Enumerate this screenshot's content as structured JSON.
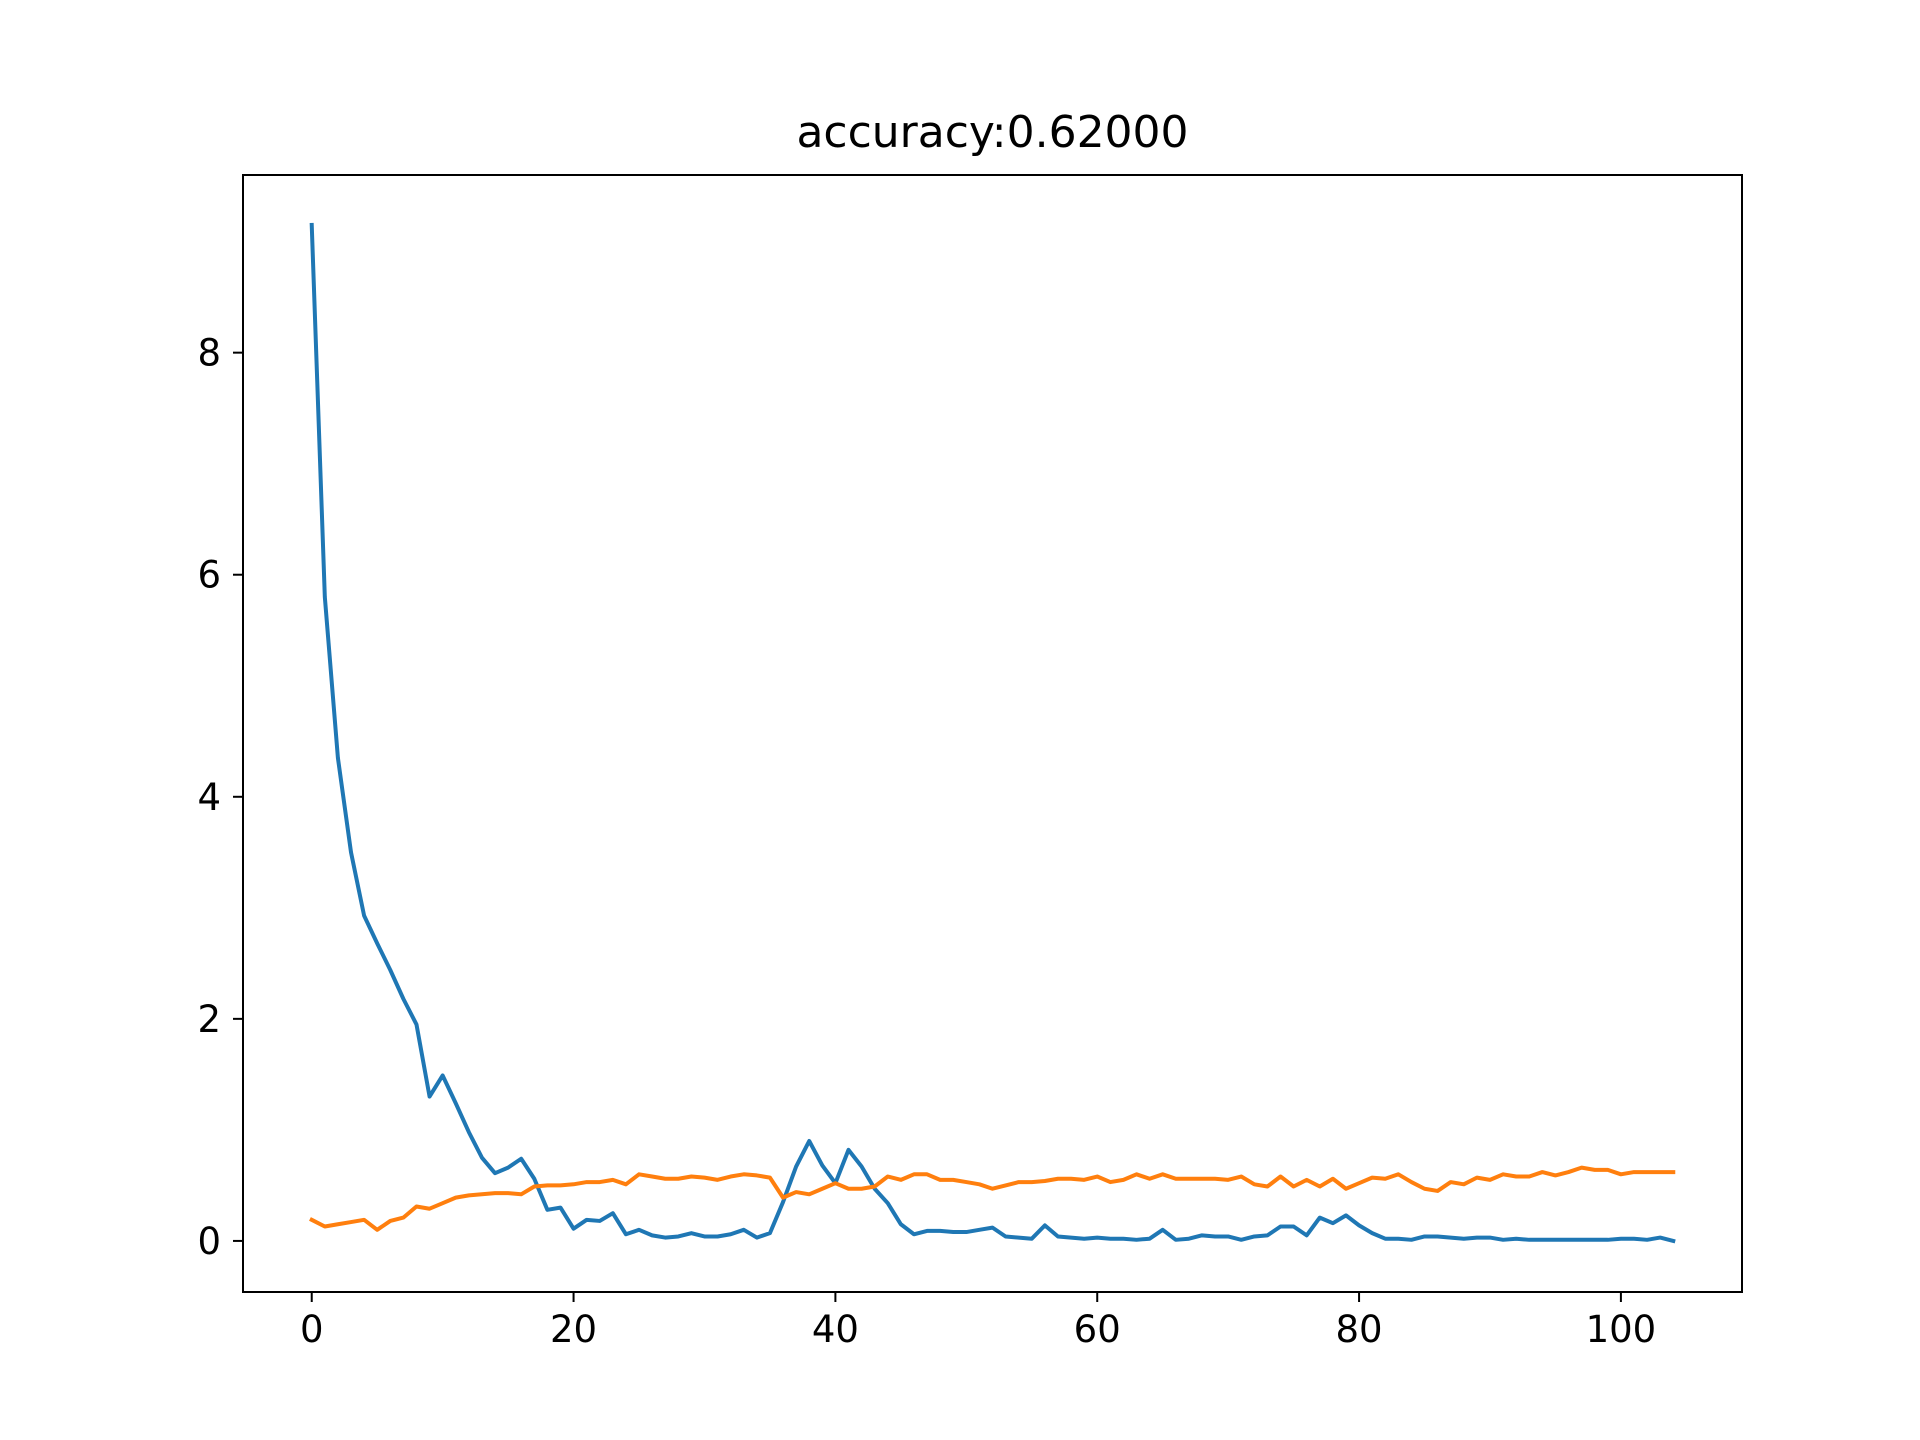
{
  "chart_data": {
    "type": "line",
    "title": "accuracy:0.62000",
    "xlabel": "",
    "ylabel": "",
    "xlim": [
      -5.25,
      109.25
    ],
    "ylim": [
      -0.46,
      9.6
    ],
    "x_ticks": [
      0,
      20,
      40,
      60,
      80,
      100
    ],
    "y_ticks": [
      0,
      2,
      4,
      6,
      8
    ],
    "x_tick_labels": [
      "0",
      "20",
      "40",
      "60",
      "80",
      "100"
    ],
    "y_tick_labels": [
      "0",
      "2",
      "4",
      "6",
      "8"
    ],
    "grid": false,
    "legend": "none",
    "series": [
      {
        "color": "#1f77b4",
        "x_start": 0,
        "x_step": 1,
        "values": [
          9.15,
          5.8,
          4.35,
          3.5,
          2.93,
          2.68,
          2.44,
          2.18,
          1.95,
          1.3,
          1.49,
          1.24,
          0.98,
          0.75,
          0.61,
          0.66,
          0.74,
          0.56,
          0.28,
          0.3,
          0.11,
          0.19,
          0.18,
          0.25,
          0.06,
          0.1,
          0.05,
          0.03,
          0.04,
          0.07,
          0.04,
          0.04,
          0.06,
          0.1,
          0.03,
          0.07,
          0.35,
          0.67,
          0.9,
          0.68,
          0.52,
          0.82,
          0.67,
          0.47,
          0.34,
          0.15,
          0.06,
          0.09,
          0.09,
          0.08,
          0.08,
          0.1,
          0.12,
          0.04,
          0.03,
          0.02,
          0.14,
          0.04,
          0.03,
          0.02,
          0.03,
          0.02,
          0.02,
          0.01,
          0.02,
          0.1,
          0.01,
          0.02,
          0.05,
          0.04,
          0.04,
          0.01,
          0.04,
          0.05,
          0.13,
          0.13,
          0.05,
          0.21,
          0.16,
          0.23,
          0.14,
          0.07,
          0.02,
          0.02,
          0.01,
          0.04,
          0.04,
          0.03,
          0.02,
          0.03,
          0.03,
          0.01,
          0.02,
          0.01,
          0.01,
          0.01,
          0.01,
          0.01,
          0.01,
          0.01,
          0.02,
          0.02,
          0.01,
          0.03,
          0.0
        ]
      },
      {
        "color": "#ff7f0e",
        "x_start": 0,
        "x_step": 1,
        "values": [
          0.19,
          0.13,
          0.15,
          0.17,
          0.19,
          0.1,
          0.18,
          0.21,
          0.31,
          0.29,
          0.34,
          0.39,
          0.41,
          0.42,
          0.43,
          0.43,
          0.42,
          0.49,
          0.5,
          0.5,
          0.51,
          0.53,
          0.53,
          0.55,
          0.51,
          0.6,
          0.58,
          0.56,
          0.56,
          0.58,
          0.57,
          0.55,
          0.58,
          0.6,
          0.59,
          0.57,
          0.39,
          0.44,
          0.42,
          0.47,
          0.52,
          0.47,
          0.47,
          0.49,
          0.58,
          0.55,
          0.6,
          0.6,
          0.55,
          0.55,
          0.53,
          0.51,
          0.47,
          0.5,
          0.53,
          0.53,
          0.54,
          0.56,
          0.56,
          0.55,
          0.58,
          0.53,
          0.55,
          0.6,
          0.56,
          0.6,
          0.56,
          0.56,
          0.56,
          0.56,
          0.55,
          0.58,
          0.51,
          0.49,
          0.58,
          0.49,
          0.55,
          0.49,
          0.56,
          0.47,
          0.52,
          0.57,
          0.56,
          0.6,
          0.53,
          0.47,
          0.45,
          0.53,
          0.51,
          0.57,
          0.55,
          0.6,
          0.58,
          0.58,
          0.62,
          0.59,
          0.62,
          0.66,
          0.64,
          0.64,
          0.6,
          0.62,
          0.62,
          0.62,
          0.62
        ]
      }
    ]
  }
}
